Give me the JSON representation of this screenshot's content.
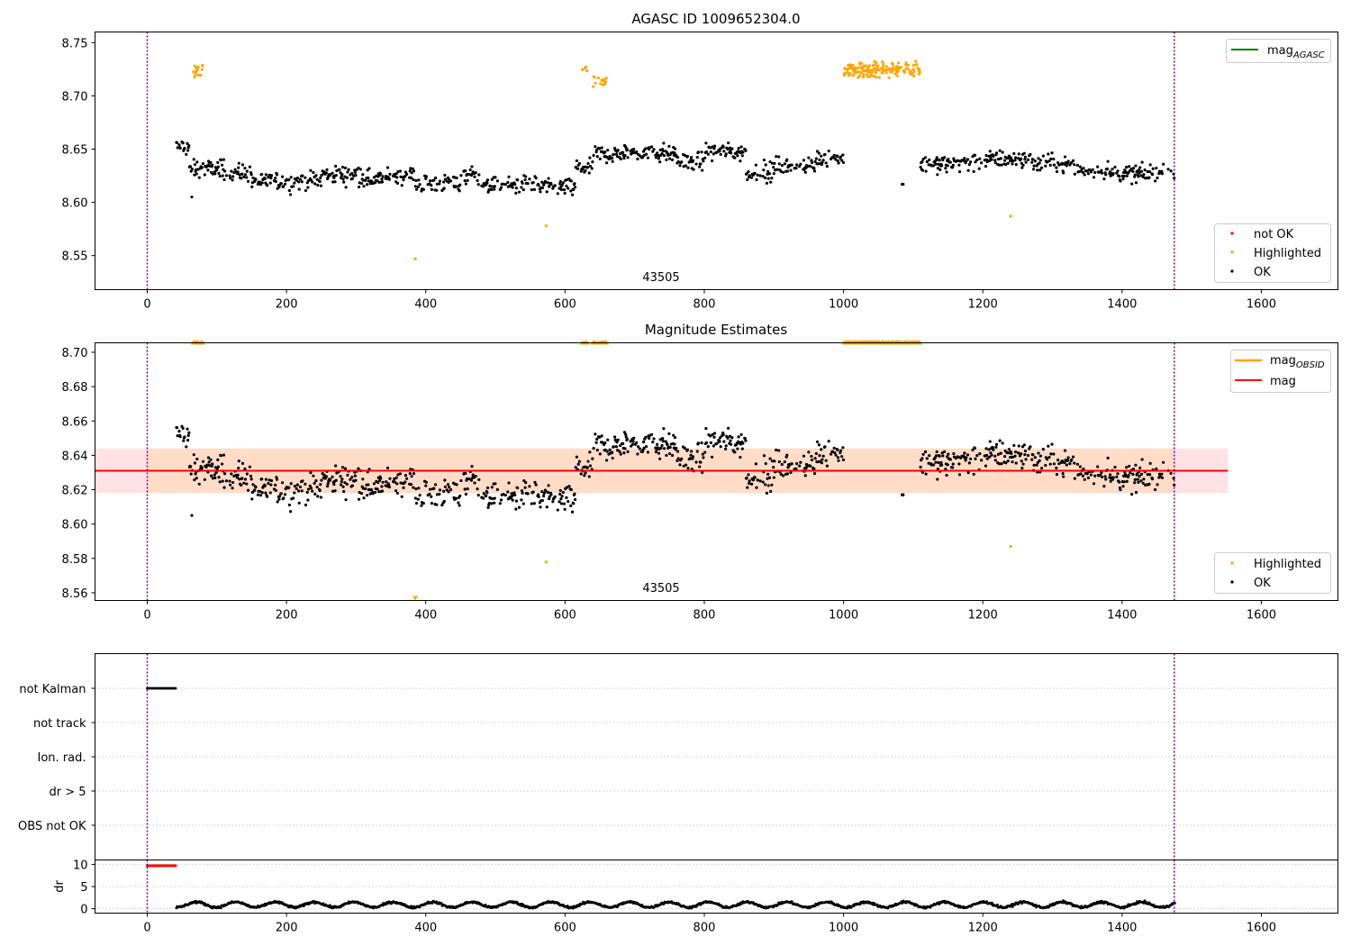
{
  "colors": {
    "ok": "#000000",
    "highlighted": "#ffa500",
    "not_ok": "#ff0000",
    "mag_line": "#ff0000",
    "mag_obsid": "#ffa500",
    "mag_agasc": "#008000",
    "band_inner": "#ffdcc8",
    "band_outer": "#ffe2e6",
    "vline": "#800080"
  },
  "chart_data": [
    {
      "type": "scatter",
      "title": "AGASC ID 1009652304.0",
      "xlim": [
        -75,
        1710
      ],
      "ylim": [
        8.518,
        8.76
      ],
      "xticks": [
        "0",
        "200",
        "400",
        "600",
        "800",
        "1000",
        "1200",
        "1400",
        "1600"
      ],
      "yticks": [
        "8.55",
        "8.60",
        "8.65",
        "8.70",
        "8.75"
      ],
      "obsid_label": "43505",
      "obsid_x": 738,
      "obs_range": [
        0,
        1475
      ],
      "legend_lines": [
        {
          "label": "mag",
          "sub": "AGASC"
        }
      ],
      "legend_points": [
        {
          "label": "not OK"
        },
        {
          "label": "Highlighted"
        },
        {
          "label": "OK"
        }
      ]
    },
    {
      "type": "scatter",
      "title": "Magnitude Estimates",
      "xlim": [
        -75,
        1710
      ],
      "ylim": [
        8.5555,
        8.7055
      ],
      "xticks": [
        "0",
        "200",
        "400",
        "600",
        "800",
        "1000",
        "1200",
        "1400",
        "1600"
      ],
      "yticks": [
        "8.56",
        "8.58",
        "8.60",
        "8.62",
        "8.64",
        "8.66",
        "8.68",
        "8.70"
      ],
      "obsid_label": "43505",
      "obsid_x": 738,
      "obs_range": [
        0,
        1475
      ],
      "mag": 8.631,
      "band_inner": [
        8.618,
        8.644
      ],
      "band_x": [
        -75,
        1552
      ],
      "inner_x_end": 1475,
      "legend_lines": [
        {
          "label": "mag",
          "sub": "OBSID"
        },
        {
          "label": "mag",
          "sub": ""
        }
      ],
      "legend_points": [
        {
          "label": "Highlighted"
        },
        {
          "label": "OK"
        }
      ]
    },
    {
      "type": "scatter",
      "title": "",
      "xlim": [
        -75,
        1710
      ],
      "categories": [
        "not Kalman",
        "not track",
        "Ion. rad.",
        "dr > 5",
        "OBS not OK"
      ],
      "flag_not_kalman_range": [
        0,
        42
      ],
      "obs_range": [
        0,
        1475
      ]
    },
    {
      "type": "scatter",
      "title": "",
      "ylabel": "dr",
      "xlim": [
        -75,
        1710
      ],
      "ylim": [
        -1,
        11
      ],
      "xticks": [
        "0",
        "200",
        "400",
        "600",
        "800",
        "1000",
        "1200",
        "1400",
        "1600"
      ],
      "yticks": [
        "0",
        "5",
        "10"
      ],
      "clipped_range": [
        0,
        42
      ],
      "clipped_value": 10,
      "obs_range": [
        0,
        1475
      ]
    }
  ]
}
